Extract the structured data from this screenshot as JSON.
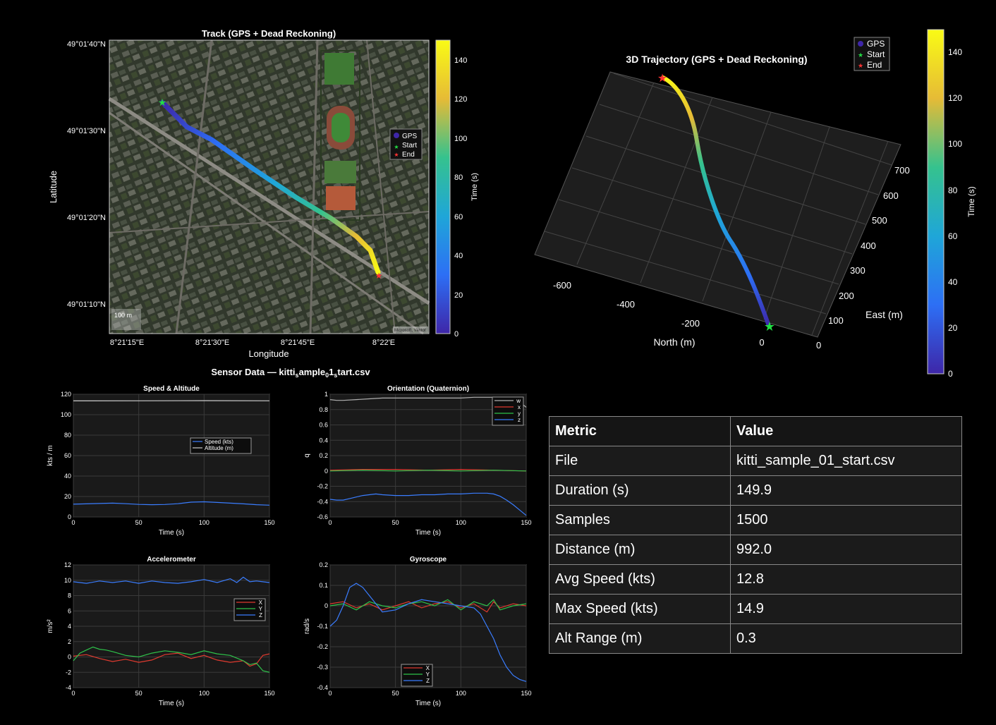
{
  "track": {
    "title": "Track (GPS + Dead Reckoning)",
    "xlabel": "Longitude",
    "ylabel": "Latitude",
    "xticks": [
      "8°21'15\"E",
      "8°21'30\"E",
      "8°21'45\"E",
      "8°22'E"
    ],
    "yticks": [
      "49°01'40\"N",
      "49°01'30\"N",
      "49°01'20\"N",
      "49°01'10\"N"
    ],
    "legend": [
      "GPS",
      "Start",
      "End"
    ],
    "scale_label": "100 m",
    "attribution": "Microsoft, Vantor",
    "colorbar_label": "Time (s)",
    "colorbar_ticks": [
      "0",
      "20",
      "40",
      "60",
      "80",
      "100",
      "120",
      "140"
    ]
  },
  "traj3d": {
    "title": "3D Trajectory (GPS + Dead Reckoning)",
    "xlabel": "North (m)",
    "ylabel": "East (m)",
    "north_ticks": [
      "-600",
      "-400",
      "-200",
      "0"
    ],
    "east_ticks": [
      "0",
      "100",
      "200",
      "300",
      "400",
      "500",
      "600",
      "700"
    ],
    "legend": [
      "GPS",
      "Start",
      "End"
    ],
    "colorbar_label": "Time (s)",
    "colorbar_ticks": [
      "0",
      "20",
      "40",
      "60",
      "80",
      "100",
      "120",
      "140"
    ]
  },
  "sensor_title_parts": [
    "Sensor Data — kitti",
    "s",
    "ample",
    "0",
    "1",
    "s",
    "tart.csv"
  ],
  "colors": {
    "w": "#b0b0b0",
    "x": "#e03a2f",
    "y": "#2ec24a",
    "z": "#3a7dff",
    "speed": "#3a7dff",
    "alt": "#2ec24a"
  },
  "chart_data": [
    {
      "type": "line",
      "title": "Speed & Altitude",
      "xlabel": "Time (s)",
      "ylabel": "kts / m",
      "xlim": [
        0,
        150
      ],
      "ylim": [
        0,
        120
      ],
      "xticks": [
        0,
        50,
        100,
        150
      ],
      "yticks": [
        0,
        20,
        40,
        60,
        80,
        100,
        120
      ],
      "legend": "upper-right",
      "series": [
        {
          "name": "Speed (kts)",
          "x": [
            0,
            10,
            20,
            30,
            40,
            50,
            60,
            70,
            80,
            90,
            100,
            110,
            120,
            130,
            140,
            150
          ],
          "values": [
            12.5,
            12.8,
            13.2,
            13.5,
            13.0,
            12.3,
            12.0,
            12.2,
            13.0,
            14.5,
            14.8,
            14.2,
            13.5,
            12.8,
            12.0,
            11.5
          ]
        },
        {
          "name": "Altitude (m)",
          "x": [
            0,
            50,
            100,
            150
          ],
          "values": [
            113.5,
            113.6,
            113.7,
            113.6
          ]
        }
      ]
    },
    {
      "type": "line",
      "title": "Orientation (Quaternion)",
      "xlabel": "Time (s)",
      "ylabel": "q",
      "xlim": [
        0,
        150
      ],
      "ylim": [
        -0.6,
        1
      ],
      "xticks": [
        0,
        50,
        100,
        150
      ],
      "yticks": [
        -0.6,
        -0.4,
        -0.2,
        0,
        0.2,
        0.4,
        0.6,
        0.8,
        1
      ],
      "legend": "upper-right",
      "series": [
        {
          "name": "w",
          "x": [
            0,
            5,
            10,
            20,
            30,
            40,
            50,
            60,
            70,
            80,
            90,
            100,
            110,
            120,
            130,
            140,
            145,
            150
          ],
          "values": [
            0.93,
            0.92,
            0.92,
            0.93,
            0.94,
            0.95,
            0.95,
            0.95,
            0.95,
            0.95,
            0.95,
            0.95,
            0.96,
            0.96,
            0.96,
            0.93,
            0.9,
            0.83
          ]
        },
        {
          "name": "x",
          "x": [
            0,
            25,
            50,
            75,
            100,
            125,
            150
          ],
          "values": [
            0.01,
            0.02,
            0.02,
            0.01,
            0.02,
            0.01,
            0.0
          ]
        },
        {
          "name": "y",
          "x": [
            0,
            25,
            50,
            75,
            100,
            125,
            150
          ],
          "values": [
            0.0,
            0.01,
            0.0,
            0.01,
            0.0,
            0.01,
            0.0
          ]
        },
        {
          "name": "z",
          "x": [
            0,
            5,
            10,
            15,
            20,
            25,
            30,
            35,
            40,
            50,
            60,
            70,
            80,
            90,
            100,
            110,
            120,
            125,
            130,
            135,
            140,
            145,
            150
          ],
          "values": [
            -0.37,
            -0.38,
            -0.38,
            -0.36,
            -0.34,
            -0.32,
            -0.31,
            -0.3,
            -0.31,
            -0.32,
            -0.32,
            -0.31,
            -0.31,
            -0.3,
            -0.3,
            -0.29,
            -0.29,
            -0.3,
            -0.33,
            -0.38,
            -0.44,
            -0.51,
            -0.58
          ]
        }
      ]
    },
    {
      "type": "line",
      "title": "Accelerometer",
      "xlabel": "Time (s)",
      "ylabel": "m/s²",
      "xlim": [
        0,
        150
      ],
      "ylim": [
        -4,
        12
      ],
      "xticks": [
        0,
        50,
        100,
        150
      ],
      "yticks": [
        -4,
        -2,
        0,
        2,
        4,
        6,
        8,
        10,
        12
      ],
      "legend": "right",
      "series": [
        {
          "name": "X",
          "x": [
            0,
            10,
            20,
            30,
            40,
            50,
            60,
            70,
            80,
            90,
            100,
            110,
            120,
            130,
            135,
            140,
            145,
            150
          ],
          "values": [
            0.1,
            0.3,
            -0.2,
            -0.6,
            -0.3,
            -0.7,
            -0.4,
            0.3,
            0.5,
            -0.2,
            0.2,
            -0.4,
            -0.7,
            -0.5,
            -1.2,
            -0.9,
            0.2,
            0.4
          ]
        },
        {
          "name": "Y",
          "x": [
            0,
            5,
            10,
            15,
            20,
            25,
            30,
            40,
            50,
            60,
            70,
            80,
            90,
            100,
            110,
            120,
            130,
            135,
            140,
            145,
            150
          ],
          "values": [
            -0.5,
            0.5,
            0.9,
            1.3,
            1.0,
            0.9,
            0.7,
            0.2,
            0.0,
            0.5,
            0.8,
            0.6,
            0.3,
            0.8,
            0.4,
            0.2,
            -0.5,
            -1.0,
            -0.8,
            -1.8,
            -2.0
          ]
        },
        {
          "name": "Z",
          "x": [
            0,
            10,
            20,
            30,
            40,
            50,
            60,
            70,
            80,
            90,
            100,
            110,
            120,
            125,
            130,
            135,
            140,
            145,
            150
          ],
          "values": [
            9.8,
            9.6,
            9.9,
            9.7,
            9.9,
            9.6,
            9.9,
            9.7,
            9.6,
            9.8,
            10.1,
            9.7,
            10.2,
            9.7,
            10.4,
            9.8,
            9.9,
            9.8,
            9.7
          ]
        }
      ]
    },
    {
      "type": "line",
      "title": "Gyroscope",
      "xlabel": "Time (s)",
      "ylabel": "rad/s",
      "xlim": [
        0,
        150
      ],
      "ylim": [
        -0.4,
        0.2
      ],
      "xticks": [
        0,
        50,
        100,
        150
      ],
      "yticks": [
        -0.4,
        -0.3,
        -0.2,
        -0.1,
        0,
        0.1,
        0.2
      ],
      "legend": "bottom-center",
      "series": [
        {
          "name": "X",
          "x": [
            0,
            10,
            20,
            30,
            40,
            50,
            60,
            70,
            80,
            90,
            100,
            110,
            120,
            125,
            130,
            140,
            150
          ],
          "values": [
            0.01,
            0.02,
            -0.01,
            0.01,
            -0.02,
            0.0,
            0.02,
            -0.01,
            0.01,
            0.02,
            -0.01,
            0.01,
            -0.03,
            0.02,
            -0.01,
            0.01,
            0.0
          ]
        },
        {
          "name": "Y",
          "x": [
            0,
            10,
            20,
            30,
            40,
            50,
            60,
            70,
            80,
            90,
            100,
            110,
            120,
            125,
            130,
            140,
            150
          ],
          "values": [
            0.0,
            0.01,
            -0.02,
            0.02,
            0.0,
            -0.01,
            0.01,
            0.02,
            0.0,
            0.03,
            -0.02,
            0.02,
            0.0,
            0.03,
            -0.02,
            0.0,
            0.01
          ]
        },
        {
          "name": "Z",
          "x": [
            0,
            5,
            10,
            15,
            20,
            25,
            30,
            35,
            40,
            50,
            60,
            70,
            80,
            90,
            100,
            110,
            115,
            120,
            125,
            130,
            135,
            140,
            145,
            150
          ],
          "values": [
            -0.1,
            -0.07,
            0.0,
            0.09,
            0.11,
            0.09,
            0.05,
            0.01,
            -0.03,
            -0.02,
            0.01,
            0.03,
            0.02,
            0.01,
            0.0,
            -0.01,
            -0.04,
            -0.1,
            -0.16,
            -0.24,
            -0.3,
            -0.34,
            -0.36,
            -0.37
          ]
        }
      ]
    },
    {
      "type": "table",
      "headers": [
        "Metric",
        "Value"
      ],
      "rows": [
        [
          "File",
          "kitti_sample_01_start.csv"
        ],
        [
          "Duration (s)",
          "149.9"
        ],
        [
          "Samples",
          "1500"
        ],
        [
          "Distance (m)",
          "992.0"
        ],
        [
          "Avg Speed (kts)",
          "12.8"
        ],
        [
          "Max Speed (kts)",
          "14.9"
        ],
        [
          "Alt Range (m)",
          "0.3"
        ]
      ]
    }
  ]
}
